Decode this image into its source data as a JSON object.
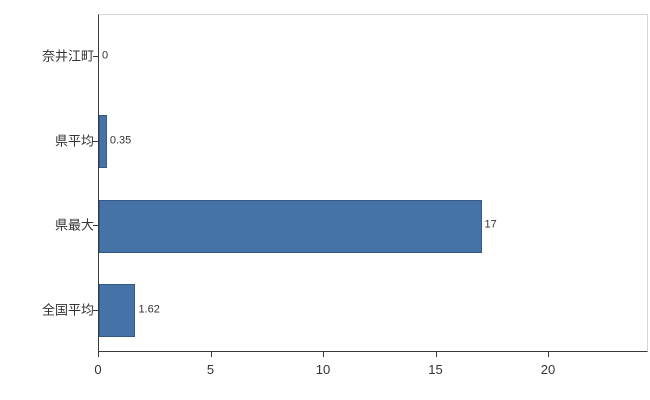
{
  "chart_data": {
    "type": "bar",
    "orientation": "horizontal",
    "title": "",
    "xlabel": "",
    "ylabel": "",
    "categories": [
      "奈井江町",
      "県平均",
      "県最大",
      "全国平均"
    ],
    "values": [
      0,
      0.35,
      17,
      1.62
    ],
    "value_labels": [
      "0",
      "0.35",
      "17",
      "1.62"
    ],
    "x_ticks": [
      0,
      5,
      10,
      15,
      20
    ],
    "x_tick_labels": [
      "0",
      "5",
      "10",
      "15",
      "20"
    ],
    "xlim": [
      0,
      20
    ],
    "grid": false,
    "legend": "none",
    "bar_color": "#4572a7",
    "bar_border_color": "#345a88",
    "axis_color": "#3a3a3a",
    "frame_color": "#d6d6d6",
    "background_color": "#ffffff"
  }
}
